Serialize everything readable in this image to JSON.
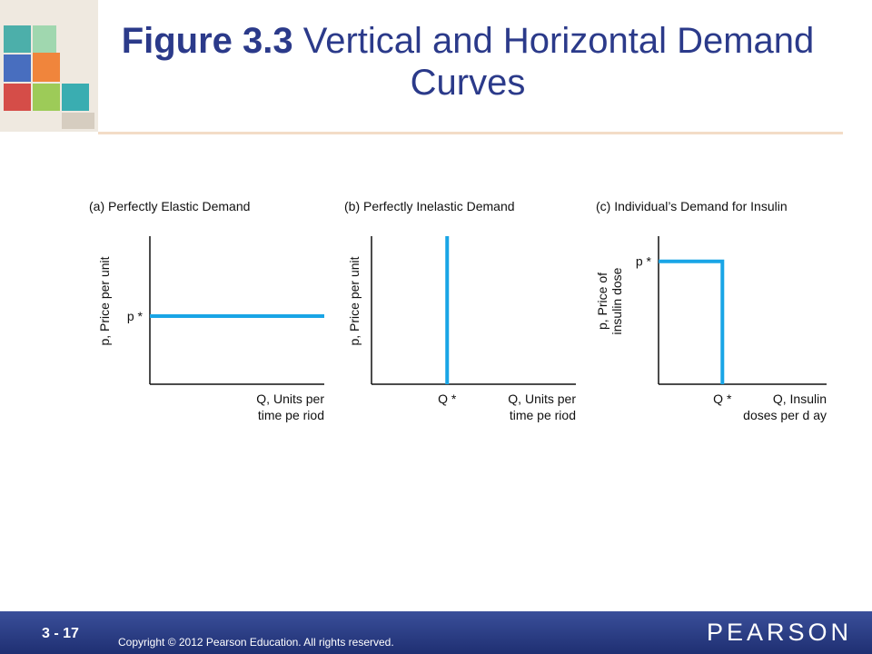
{
  "slide": {
    "title_bold": "Figure 3.3",
    "title_rest": " Vertical and Horizontal Demand Curves",
    "slide_number": "3 - 17",
    "copyright": "Copyright © 2012  Pearson Education. All rights reserved.",
    "logo": "PEARSON"
  },
  "colors": {
    "curve": "#19a5e6",
    "title": "#2b3a8a",
    "footer": "#2a3d85"
  },
  "chart_data": [
    {
      "type": "line",
      "title": "(a) Perfectly Elastic Demand",
      "ylabel": [
        "p, Price per unit"
      ],
      "xlabel": [
        "Q, Units per",
        "time pe riod"
      ],
      "ymarker": "p *",
      "xmarker": "",
      "curve": "horizontal line at p*",
      "series": [
        {
          "x": [
            0,
            1
          ],
          "y": [
            0.46,
            0.46
          ]
        }
      ],
      "xlim": [
        0,
        1
      ],
      "ylim": [
        0,
        1
      ],
      "grid": false
    },
    {
      "type": "line",
      "title": "(b) Perfectly Inelastic Demand",
      "ylabel": [
        "p, Price per unit"
      ],
      "xlabel": [
        "Q, Units per",
        "time pe riod"
      ],
      "ymarker": "",
      "xmarker": "Q *",
      "curve": "vertical line at Q*",
      "series": [
        {
          "x": [
            0.37,
            0.37
          ],
          "y": [
            0,
            1
          ]
        }
      ],
      "xlim": [
        0,
        1
      ],
      "ylim": [
        0,
        1
      ],
      "grid": false
    },
    {
      "type": "line",
      "title": "(c) Individual’s Demand for Insulin",
      "ylabel": [
        "p, Price of",
        "insulin dose"
      ],
      "xlabel": [
        "Q, Insulin",
        "doses per d ay"
      ],
      "ymarker": "p *",
      "xmarker": "Q *",
      "curve": "vertical line at Q* up to p*",
      "series": [
        {
          "x": [
            0,
            0.38,
            0.38
          ],
          "y": [
            0.83,
            0.83,
            0
          ]
        }
      ],
      "xlim": [
        0,
        1
      ],
      "ylim": [
        0,
        1
      ],
      "grid": false
    }
  ]
}
